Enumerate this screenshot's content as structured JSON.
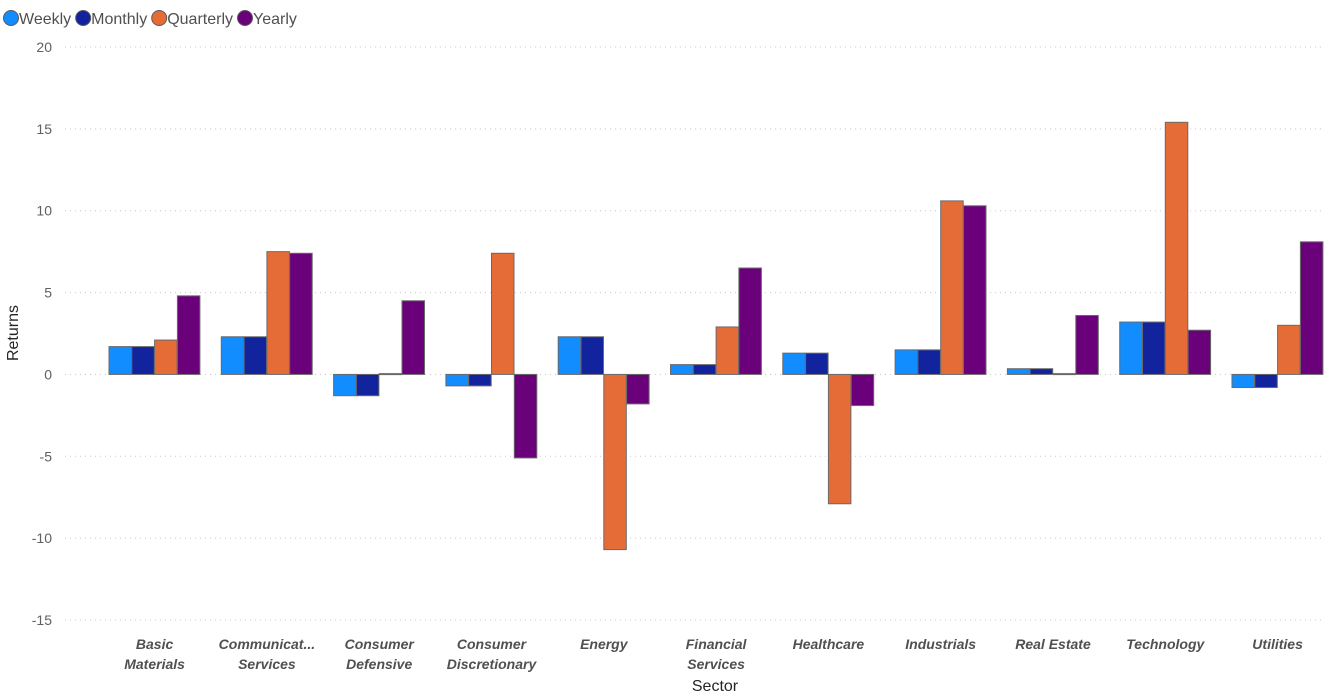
{
  "chart_data": {
    "type": "bar",
    "xlabel": "Sector",
    "ylabel": "Returns",
    "ylim": [
      -15,
      20
    ],
    "yticks": [
      20,
      15,
      10,
      5,
      0,
      -5,
      -10,
      -15
    ],
    "grid": true,
    "legend_position": "top-left",
    "categories": [
      [
        "Basic",
        "Materials"
      ],
      [
        "Communicat...",
        "Services"
      ],
      [
        "Consumer",
        "Defensive"
      ],
      [
        "Consumer",
        "Discretionary"
      ],
      [
        "Energy"
      ],
      [
        "Financial",
        "Services"
      ],
      [
        "Healthcare"
      ],
      [
        "Industrials"
      ],
      [
        "Real Estate"
      ],
      [
        "Technology"
      ],
      [
        "Utilities"
      ]
    ],
    "series": [
      {
        "name": "Weekly",
        "color": "#118DFF",
        "values": [
          1.7,
          2.3,
          -1.3,
          -0.7,
          2.3,
          0.6,
          1.3,
          1.5,
          0.35,
          3.2,
          -0.8
        ]
      },
      {
        "name": "Monthly",
        "color": "#12239E",
        "values": [
          1.7,
          2.3,
          -1.3,
          -0.7,
          2.3,
          0.6,
          1.3,
          1.5,
          0.35,
          3.2,
          -0.8
        ]
      },
      {
        "name": "Quarterly",
        "color": "#E66C37",
        "values": [
          2.1,
          7.5,
          0.05,
          7.4,
          -10.7,
          2.9,
          -7.9,
          10.6,
          0.05,
          15.4,
          3.0
        ]
      },
      {
        "name": "Yearly",
        "color": "#6B007B",
        "values": [
          4.8,
          7.4,
          4.5,
          -5.1,
          -1.8,
          6.5,
          -1.9,
          10.3,
          3.6,
          2.7,
          8.1
        ]
      }
    ]
  }
}
